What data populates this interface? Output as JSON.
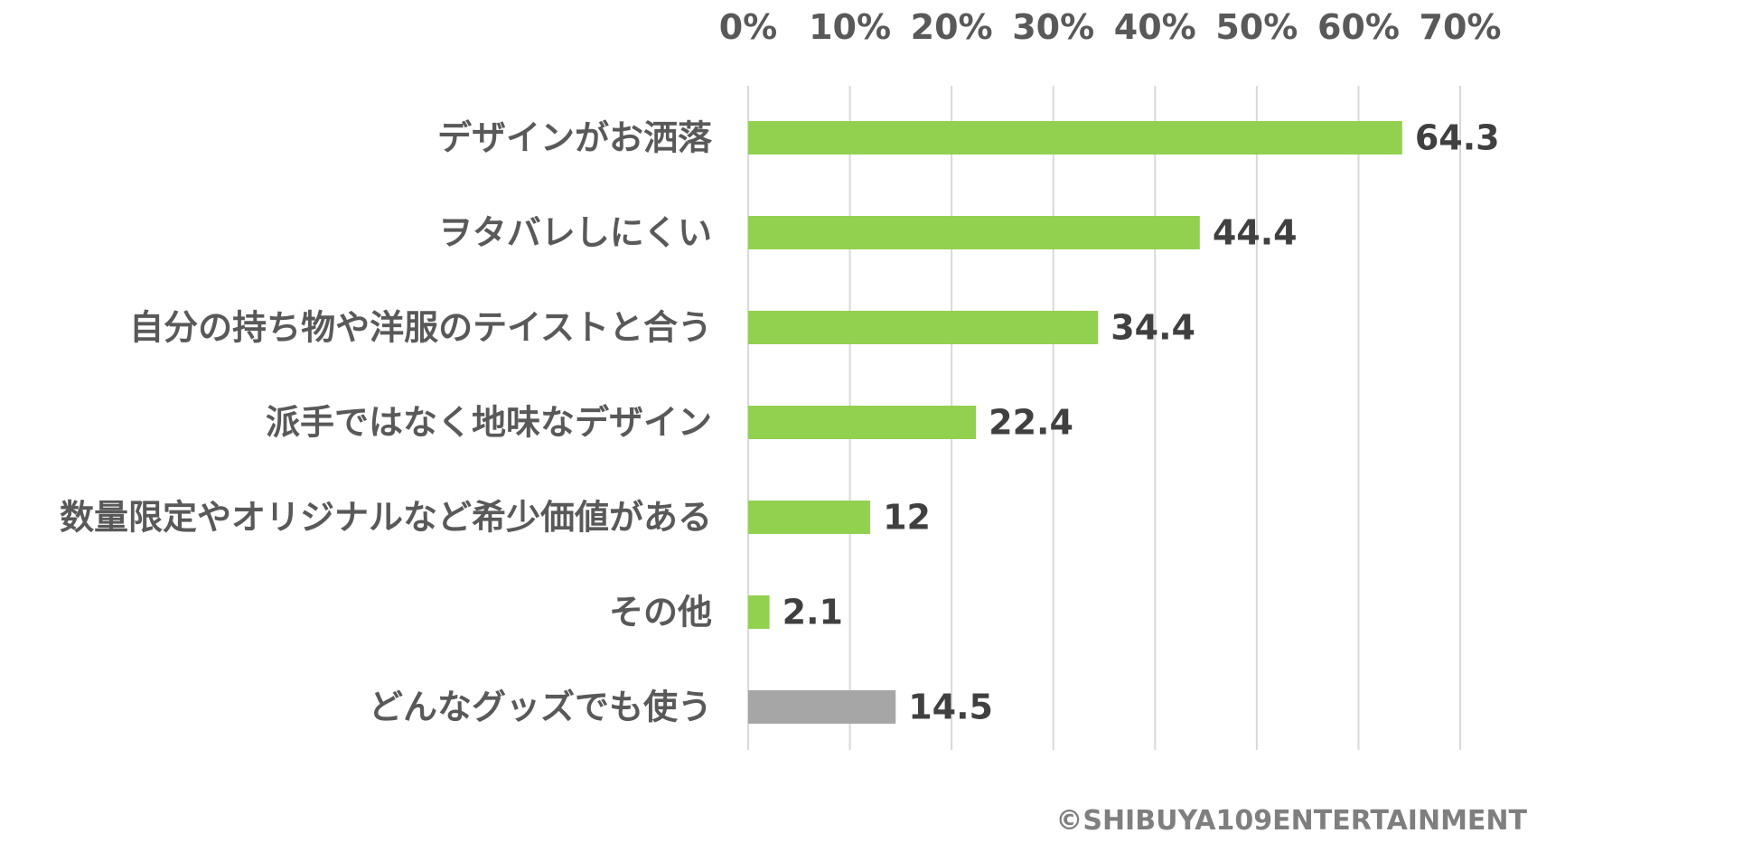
{
  "chart_data": {
    "type": "bar",
    "orientation": "horizontal",
    "categories": [
      "デザインがお洒落",
      "ヲタバレしにくい",
      "自分の持ち物や洋服のテイストと合う",
      "派手ではなく地味なデザイン",
      "数量限定やオリジナルなど希少価値がある",
      "その他",
      "どんなグッズでも使う"
    ],
    "values": [
      64.3,
      44.4,
      34.4,
      22.4,
      12,
      2.1,
      14.5
    ],
    "value_labels": [
      "64.3",
      "44.4",
      "34.4",
      "22.4",
      "12",
      "2.1",
      "14.5"
    ],
    "bar_colors": [
      "#92d050",
      "#92d050",
      "#92d050",
      "#92d050",
      "#92d050",
      "#92d050",
      "#a6a6a6"
    ],
    "xlim": [
      0,
      70
    ],
    "x_ticks": [
      0,
      10,
      20,
      30,
      40,
      50,
      60,
      70
    ],
    "x_tick_labels": [
      "0%",
      "10%",
      "20%",
      "30%",
      "40%",
      "50%",
      "60%",
      "70%"
    ],
    "x_axis_position": "top",
    "grid": true,
    "legend": "none",
    "title": "",
    "xlabel": "",
    "ylabel": ""
  },
  "copyright": "©SHIBUYA109ENTERTAINMENT"
}
